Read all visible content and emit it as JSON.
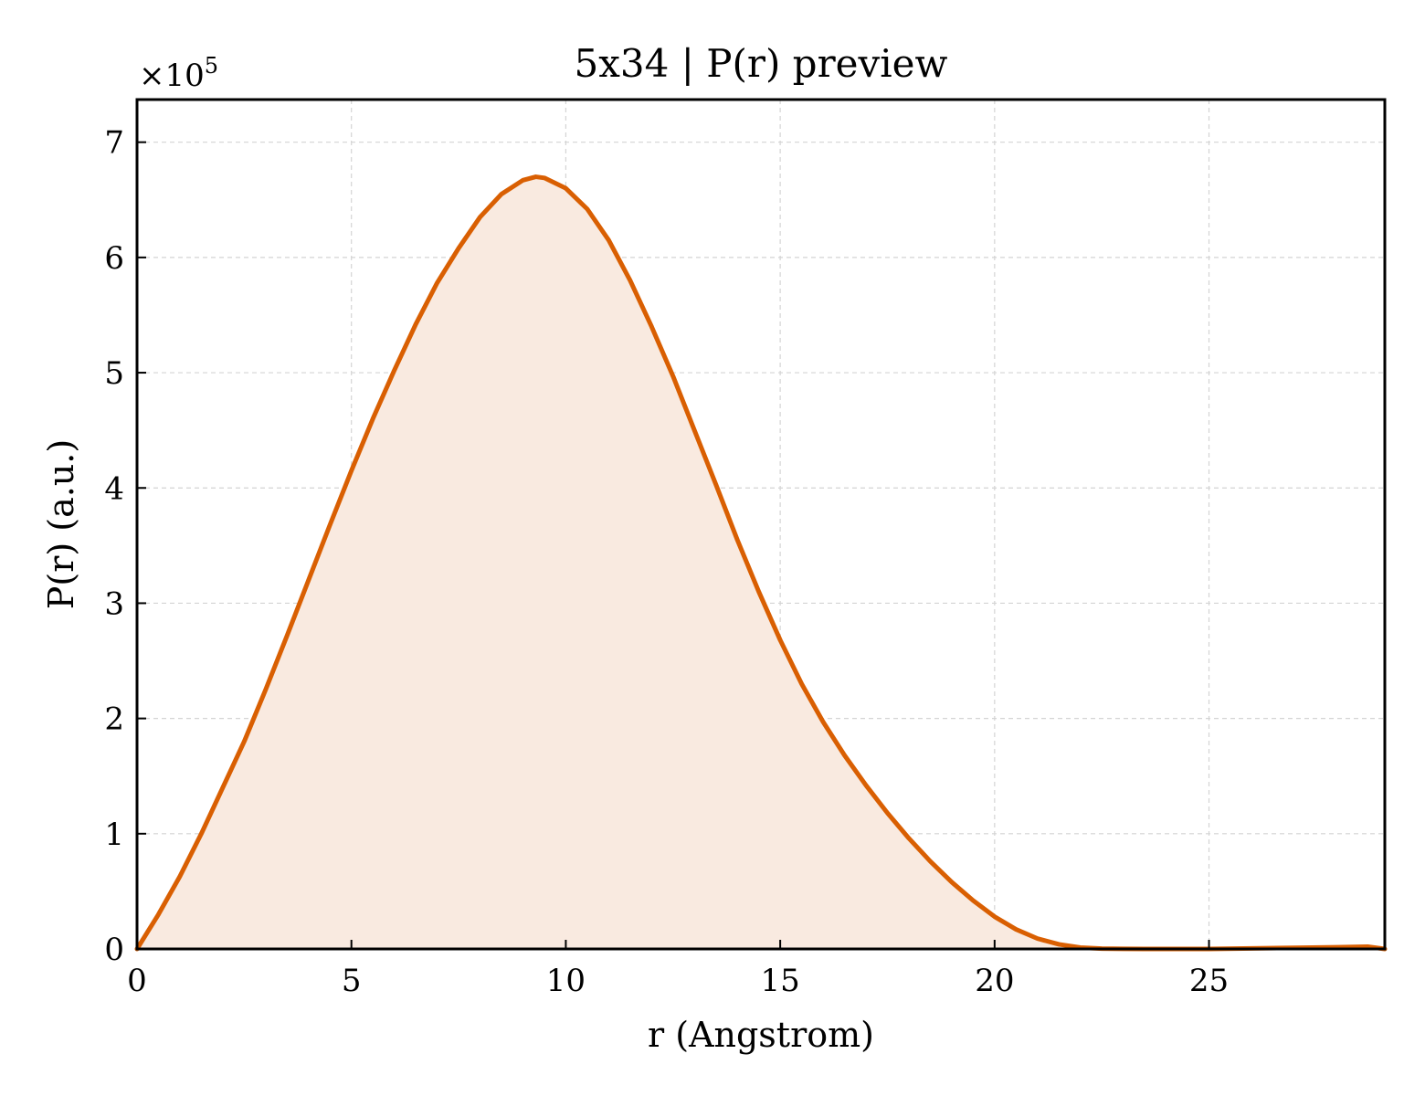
{
  "chart_data": {
    "type": "area",
    "title": "5x34 | P(r) preview",
    "xlabel": "r (Angstrom)",
    "ylabel": "P(r) (a.u.)",
    "y_offset_label": {
      "base": "×10",
      "exponent": "5"
    },
    "xlim": [
      0,
      29.1
    ],
    "ylim": [
      0,
      7.37
    ],
    "x_ticks": [
      0,
      5,
      10,
      15,
      20,
      25
    ],
    "y_ticks": [
      0,
      1,
      2,
      3,
      4,
      5,
      6,
      7
    ],
    "grid": true,
    "line_color": "#d95f02",
    "fill_color": "#f9eae0",
    "series": [
      {
        "x": [
          0,
          0.5,
          1,
          1.5,
          2,
          2.5,
          3,
          3.5,
          4,
          4.5,
          5,
          5.5,
          6,
          6.5,
          7,
          7.5,
          8,
          8.5,
          9,
          9.3,
          9.5,
          10,
          10.5,
          11,
          11.5,
          12,
          12.5,
          13,
          13.5,
          14,
          14.5,
          15,
          15.5,
          16,
          16.5,
          17,
          17.5,
          18,
          18.5,
          19,
          19.5,
          20,
          20.5,
          21,
          21.5,
          22,
          22.5,
          23,
          23.5,
          24,
          24.5,
          25,
          26,
          27,
          28,
          28.7,
          29.1
        ],
        "y": [
          0,
          0.3,
          0.63,
          1.0,
          1.4,
          1.8,
          2.25,
          2.72,
          3.2,
          3.68,
          4.15,
          4.6,
          5.02,
          5.42,
          5.78,
          6.08,
          6.35,
          6.55,
          6.67,
          6.7,
          6.69,
          6.6,
          6.42,
          6.15,
          5.8,
          5.4,
          4.97,
          4.5,
          4.03,
          3.55,
          3.1,
          2.68,
          2.3,
          1.97,
          1.68,
          1.42,
          1.18,
          0.96,
          0.76,
          0.58,
          0.42,
          0.28,
          0.17,
          0.09,
          0.04,
          0.012,
          0.003,
          0.001,
          0,
          0,
          0,
          0,
          0.005,
          0.01,
          0.015,
          0.02,
          0.0
        ]
      }
    ]
  }
}
